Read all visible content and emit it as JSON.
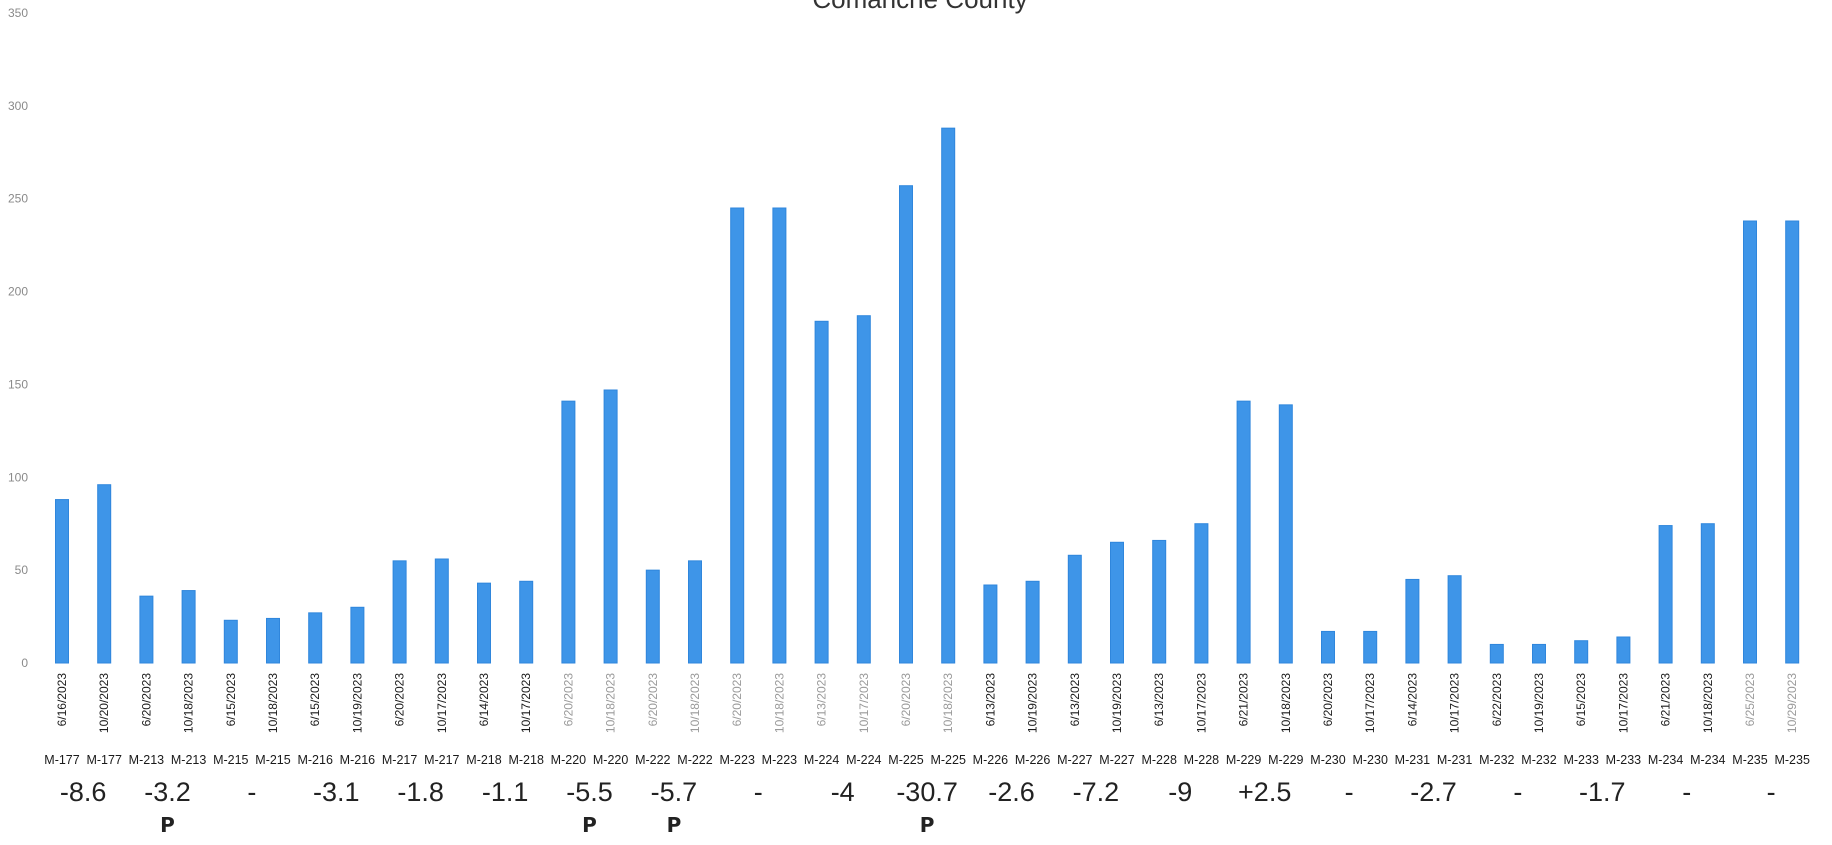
{
  "chart_data": {
    "type": "bar",
    "title": "Comanche County",
    "xlabel": "",
    "ylabel": "",
    "ylim": [
      0,
      350
    ],
    "yticks": [
      "0",
      "50",
      "100",
      "150",
      "200",
      "250",
      "300",
      "350"
    ],
    "grid": false,
    "colors": {
      "bar": "#3e95e8"
    },
    "bars": [
      {
        "site": "M-177",
        "date": "6/16/2023",
        "value": 88,
        "gray": false
      },
      {
        "site": "M-177",
        "date": "10/20/2023",
        "value": 96,
        "gray": false
      },
      {
        "site": "M-213",
        "date": "6/20/2023",
        "value": 36,
        "gray": false
      },
      {
        "site": "M-213",
        "date": "10/18/2023",
        "value": 39,
        "gray": false
      },
      {
        "site": "M-215",
        "date": "6/15/2023",
        "value": 23,
        "gray": false
      },
      {
        "site": "M-215",
        "date": "10/18/2023",
        "value": 24,
        "gray": false
      },
      {
        "site": "M-216",
        "date": "6/15/2023",
        "value": 27,
        "gray": false
      },
      {
        "site": "M-216",
        "date": "10/19/2023",
        "value": 30,
        "gray": false
      },
      {
        "site": "M-217",
        "date": "6/20/2023",
        "value": 55,
        "gray": false
      },
      {
        "site": "M-217",
        "date": "10/17/2023",
        "value": 56,
        "gray": false
      },
      {
        "site": "M-218",
        "date": "6/14/2023",
        "value": 43,
        "gray": false
      },
      {
        "site": "M-218",
        "date": "10/17/2023",
        "value": 44,
        "gray": false
      },
      {
        "site": "M-220",
        "date": "6/20/2023",
        "value": 141,
        "gray": true
      },
      {
        "site": "M-220",
        "date": "10/18/2023",
        "value": 147,
        "gray": true
      },
      {
        "site": "M-222",
        "date": "6/20/2023",
        "value": 50,
        "gray": true
      },
      {
        "site": "M-222",
        "date": "10/18/2023",
        "value": 55,
        "gray": true
      },
      {
        "site": "M-223",
        "date": "6/20/2023",
        "value": 245,
        "gray": true
      },
      {
        "site": "M-223",
        "date": "10/18/2023",
        "value": 245,
        "gray": true
      },
      {
        "site": "M-224",
        "date": "6/13/2023",
        "value": 184,
        "gray": true
      },
      {
        "site": "M-224",
        "date": "10/17/2023",
        "value": 187,
        "gray": true
      },
      {
        "site": "M-225",
        "date": "6/20/2023",
        "value": 257,
        "gray": true
      },
      {
        "site": "M-225",
        "date": "10/18/2023",
        "value": 288,
        "gray": true
      },
      {
        "site": "M-226",
        "date": "6/13/2023",
        "value": 42,
        "gray": false
      },
      {
        "site": "M-226",
        "date": "10/19/2023",
        "value": 44,
        "gray": false
      },
      {
        "site": "M-227",
        "date": "6/13/2023",
        "value": 58,
        "gray": false
      },
      {
        "site": "M-227",
        "date": "10/19/2023",
        "value": 65,
        "gray": false
      },
      {
        "site": "M-228",
        "date": "6/13/2023",
        "value": 66,
        "gray": false
      },
      {
        "site": "M-228",
        "date": "10/17/2023",
        "value": 75,
        "gray": false
      },
      {
        "site": "M-229",
        "date": "6/21/2023",
        "value": 141,
        "gray": false
      },
      {
        "site": "M-229",
        "date": "10/18/2023",
        "value": 139,
        "gray": false
      },
      {
        "site": "M-230",
        "date": "6/20/2023",
        "value": 17,
        "gray": false
      },
      {
        "site": "M-230",
        "date": "10/17/2023",
        "value": 17,
        "gray": false
      },
      {
        "site": "M-231",
        "date": "6/14/2023",
        "value": 45,
        "gray": false
      },
      {
        "site": "M-231",
        "date": "10/17/2023",
        "value": 47,
        "gray": false
      },
      {
        "site": "M-232",
        "date": "6/22/2023",
        "value": 10,
        "gray": false
      },
      {
        "site": "M-232",
        "date": "10/19/2023",
        "value": 10,
        "gray": false
      },
      {
        "site": "M-233",
        "date": "6/15/2023",
        "value": 12,
        "gray": false
      },
      {
        "site": "M-233",
        "date": "10/17/2023",
        "value": 14,
        "gray": false
      },
      {
        "site": "M-234",
        "date": "6/21/2023",
        "value": 74,
        "gray": false
      },
      {
        "site": "M-234",
        "date": "10/18/2023",
        "value": 75,
        "gray": false
      },
      {
        "site": "M-235",
        "date": "6/25/2023",
        "value": 238,
        "gray": true
      },
      {
        "site": "M-235",
        "date": "10/29/2023",
        "value": 238,
        "gray": true
      }
    ],
    "annotations": [
      {
        "pair": 0,
        "text": "-8.6",
        "p": ""
      },
      {
        "pair": 1,
        "text": "-3.2",
        "p": "P"
      },
      {
        "pair": 2,
        "text": "-",
        "p": ""
      },
      {
        "pair": 3,
        "text": "-3.1",
        "p": ""
      },
      {
        "pair": 4,
        "text": "-1.8",
        "p": ""
      },
      {
        "pair": 5,
        "text": "-1.1",
        "p": ""
      },
      {
        "pair": 6,
        "text": "-5.5",
        "p": "P"
      },
      {
        "pair": 7,
        "text": "-5.7",
        "p": "P"
      },
      {
        "pair": 8,
        "text": "-",
        "p": ""
      },
      {
        "pair": 9,
        "text": "-4",
        "p": ""
      },
      {
        "pair": 10,
        "text": "-30.7",
        "p": "P"
      },
      {
        "pair": 11,
        "text": "-2.6",
        "p": ""
      },
      {
        "pair": 12,
        "text": "-7.2",
        "p": ""
      },
      {
        "pair": 13,
        "text": "-9",
        "p": ""
      },
      {
        "pair": 14,
        "text": "+2.5",
        "p": ""
      },
      {
        "pair": 15,
        "text": "-",
        "p": ""
      },
      {
        "pair": 16,
        "text": "-2.7",
        "p": ""
      },
      {
        "pair": 17,
        "text": "-",
        "p": ""
      },
      {
        "pair": 18,
        "text": "-1.7",
        "p": ""
      },
      {
        "pair": 19,
        "text": "-",
        "p": ""
      },
      {
        "pair": 20,
        "text": "-",
        "p": ""
      }
    ]
  }
}
